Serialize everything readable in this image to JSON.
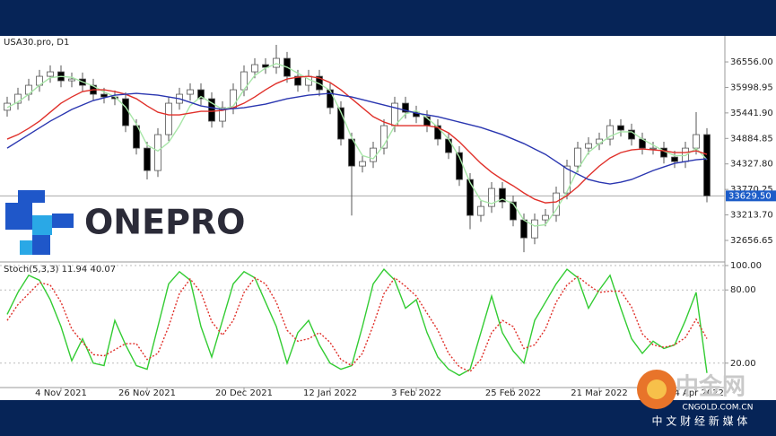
{
  "chart_data": [
    {
      "type": "candlestick",
      "title": "USA30.pro, D1",
      "categories": [
        null,
        null,
        null,
        null,
        null,
        "4 Nov 2021",
        null,
        null,
        null,
        null,
        null,
        null,
        null,
        "26 Nov 2021",
        null,
        null,
        null,
        null,
        null,
        null,
        null,
        null,
        "20 Dec 2021",
        null,
        null,
        null,
        null,
        null,
        null,
        null,
        "12 Jan 2022",
        null,
        null,
        null,
        null,
        null,
        null,
        null,
        "3 Feb 2022",
        null,
        null,
        null,
        null,
        null,
        null,
        null,
        null,
        "25 Feb 2022",
        null,
        null,
        null,
        null,
        null,
        null,
        null,
        "21 Mar 2022",
        null,
        null,
        null,
        null,
        null,
        null,
        null,
        null,
        "14 Apr 2022",
        null
      ],
      "open": [
        35500,
        35654,
        35850,
        36046,
        36242,
        36340,
        36144,
        36183,
        36046,
        35850,
        35791,
        35752,
        35164,
        34673,
        34183,
        34968,
        35654,
        35850,
        35948,
        35752,
        35262,
        35556,
        35948,
        36340,
        36497,
        36438,
        36634,
        36242,
        36046,
        36242,
        35948,
        35556,
        34870,
        34281,
        34379,
        34673,
        35164,
        35654,
        35458,
        35360,
        35164,
        34870,
        34575,
        33987,
        33203,
        33399,
        33791,
        33497,
        33105,
        32712,
        33105,
        33203,
        33693,
        34281,
        34673,
        34771,
        34870,
        35164,
        35066,
        34870,
        34673,
        34673,
        34477,
        34379,
        34673,
        34968
      ],
      "high": [
        35794,
        35990,
        36186,
        36382,
        36480,
        36480,
        36323,
        36323,
        36186,
        35990,
        35931,
        35892,
        35304,
        34813,
        35108,
        35794,
        35990,
        36088,
        36088,
        35892,
        35696,
        36088,
        36480,
        36637,
        36637,
        36930,
        36774,
        36382,
        36382,
        36382,
        36088,
        35696,
        35010,
        34519,
        34813,
        35304,
        35794,
        35794,
        35598,
        35500,
        35304,
        35010,
        34715,
        34127,
        33539,
        33931,
        33931,
        33637,
        33245,
        33245,
        33343,
        33833,
        34421,
        34813,
        34911,
        35010,
        35304,
        35304,
        35206,
        35010,
        34813,
        34813,
        34617,
        34813,
        35460,
        35108
      ],
      "low": [
        35360,
        35514,
        35710,
        35906,
        36102,
        36004,
        36004,
        35906,
        35710,
        35651,
        35612,
        35024,
        34533,
        33990,
        34043,
        34828,
        35514,
        35710,
        35612,
        35122,
        35122,
        35416,
        35808,
        36200,
        36298,
        36298,
        36102,
        35906,
        35906,
        35808,
        35416,
        34730,
        33200,
        34141,
        34239,
        34533,
        35024,
        35318,
        35220,
        35024,
        34730,
        34435,
        33847,
        32900,
        33063,
        33259,
        33357,
        32965,
        32400,
        32572,
        32965,
        33063,
        33553,
        34141,
        34533,
        34631,
        34730,
        34926,
        34730,
        34533,
        34533,
        34337,
        34239,
        34239,
        34533,
        33490
      ],
      "close": [
        35654,
        35850,
        36046,
        36242,
        36340,
        36144,
        36183,
        36046,
        35850,
        35791,
        35752,
        35164,
        34673,
        34183,
        34968,
        35654,
        35850,
        35948,
        35752,
        35262,
        35556,
        35948,
        36340,
        36497,
        36438,
        36634,
        36242,
        36046,
        36242,
        35948,
        35556,
        34870,
        34281,
        34379,
        34673,
        35164,
        35654,
        35458,
        35360,
        35164,
        34870,
        34575,
        33987,
        33203,
        33399,
        33791,
        33497,
        33105,
        32712,
        33105,
        33203,
        33693,
        34281,
        34673,
        34771,
        34870,
        35164,
        35066,
        34870,
        34673,
        34673,
        34477,
        34379,
        34673,
        34968,
        33629.5
      ],
      "up_color": "#ffffff",
      "down_color": "#000000",
      "wick_color": "#555555",
      "series": [
        {
          "color": "#a8e6a8",
          "values": [
            35560,
            35680,
            35850,
            36046,
            36210,
            36240,
            36220,
            36120,
            36030,
            35900,
            35800,
            35570,
            35200,
            34740,
            34610,
            34800,
            35160,
            35600,
            35800,
            35660,
            35520,
            35590,
            35950,
            36260,
            36420,
            36520,
            36440,
            36310,
            36180,
            36080,
            35930,
            35460,
            34900,
            34510,
            34440,
            34740,
            35160,
            35420,
            35490,
            35330,
            35130,
            34870,
            34480,
            33920,
            33530,
            33460,
            33560,
            33460,
            33100,
            32970,
            33000,
            33330,
            33720,
            34210,
            34580,
            34770,
            34930,
            35030,
            35030,
            34870,
            34740,
            34610,
            34510,
            34510,
            34670,
            34420
          ]
        },
        {
          "color": "#e0302a",
          "values": [
            34870,
            34968,
            35105,
            35262,
            35458,
            35654,
            35791,
            35909,
            35948,
            35948,
            35909,
            35850,
            35752,
            35595,
            35458,
            35399,
            35399,
            35438,
            35477,
            35477,
            35497,
            35556,
            35654,
            35791,
            35948,
            36085,
            36183,
            36223,
            36242,
            36203,
            36105,
            35948,
            35752,
            35556,
            35360,
            35242,
            35164,
            35164,
            35164,
            35164,
            35124,
            35007,
            34811,
            34575,
            34340,
            34144,
            33987,
            33850,
            33693,
            33556,
            33477,
            33497,
            33634,
            33830,
            34066,
            34281,
            34458,
            34575,
            34634,
            34654,
            34634,
            34615,
            34575,
            34575,
            34615,
            34536
          ]
        },
        {
          "color": "#2a36b0",
          "values": [
            34673,
            34821,
            34968,
            35115,
            35262,
            35389,
            35517,
            35615,
            35713,
            35772,
            35830,
            35850,
            35870,
            35850,
            35830,
            35791,
            35752,
            35674,
            35595,
            35556,
            35517,
            35536,
            35556,
            35595,
            35634,
            35693,
            35752,
            35791,
            35830,
            35850,
            35870,
            35830,
            35791,
            35732,
            35674,
            35615,
            35556,
            35497,
            35438,
            35399,
            35360,
            35301,
            35242,
            35183,
            35125,
            35046,
            34968,
            34870,
            34772,
            34654,
            34536,
            34379,
            34222,
            34105,
            33987,
            33928,
            33889,
            33928,
            33987,
            34085,
            34183,
            34262,
            34340,
            34379,
            34419,
            34438
          ]
        }
      ],
      "ylim": [
        32225,
        37027
      ],
      "yticks": [
        {
          "value": 36556,
          "label": "36556.00"
        },
        {
          "value": 35998.95,
          "label": "35998.95"
        },
        {
          "value": 35441.9,
          "label": "35441.90"
        },
        {
          "value": 34884.85,
          "label": "34884.85"
        },
        {
          "value": 34327.8,
          "label": "34327.80"
        },
        {
          "value": 33770.25,
          "label": "33770.25"
        },
        {
          "value": 33213.7,
          "label": "33213.70"
        },
        {
          "value": 32656.65,
          "label": "32656.65"
        }
      ],
      "last_price": {
        "value": 33629.5,
        "label": "33629.50"
      },
      "last_price_color": "#1c5cc8"
    },
    {
      "type": "line",
      "title": "Stoch(5,3,3) 11.94 40.07",
      "series": [
        {
          "color": "#33cc33",
          "style": "solid",
          "values": [
            60,
            78,
            92,
            88,
            72,
            50,
            22,
            40,
            20,
            18,
            55,
            35,
            18,
            15,
            50,
            85,
            95,
            88,
            50,
            25,
            55,
            85,
            95,
            90,
            70,
            50,
            20,
            45,
            55,
            35,
            20,
            15,
            18,
            50,
            85,
            97,
            88,
            65,
            72,
            45,
            25,
            15,
            10,
            15,
            45,
            75,
            45,
            30,
            20,
            55,
            70,
            85,
            97,
            90,
            65,
            80,
            92,
            65,
            40,
            28,
            38,
            32,
            35,
            55,
            78,
            11.94
          ]
        },
        {
          "color": "#e0302a",
          "style": "dotted",
          "values": [
            55,
            68,
            77,
            86,
            84,
            70,
            48,
            37,
            27,
            26,
            31,
            36,
            36,
            23,
            28,
            50,
            77,
            89,
            78,
            54,
            43,
            55,
            78,
            90,
            85,
            70,
            47,
            38,
            40,
            45,
            37,
            23,
            18,
            28,
            51,
            77,
            90,
            83,
            75,
            61,
            47,
            28,
            17,
            13,
            23,
            45,
            55,
            50,
            32,
            35,
            48,
            70,
            84,
            91,
            84,
            78,
            79,
            79,
            66,
            44,
            35,
            33,
            35,
            41,
            56,
            40.07
          ]
        }
      ],
      "ylim": [
        0,
        100
      ],
      "yticks": [
        {
          "value": 100,
          "label": "100.00"
        },
        {
          "value": 80,
          "label": "80.00"
        },
        {
          "value": 20,
          "label": "20.00"
        }
      ],
      "grid": true
    }
  ],
  "logo": {
    "text": "ONEPRO"
  },
  "watermark": {
    "name": "中金网",
    "site": "CNGOLD.COM.CN",
    "tagline": "中 文 财 经 新 媒 体"
  }
}
